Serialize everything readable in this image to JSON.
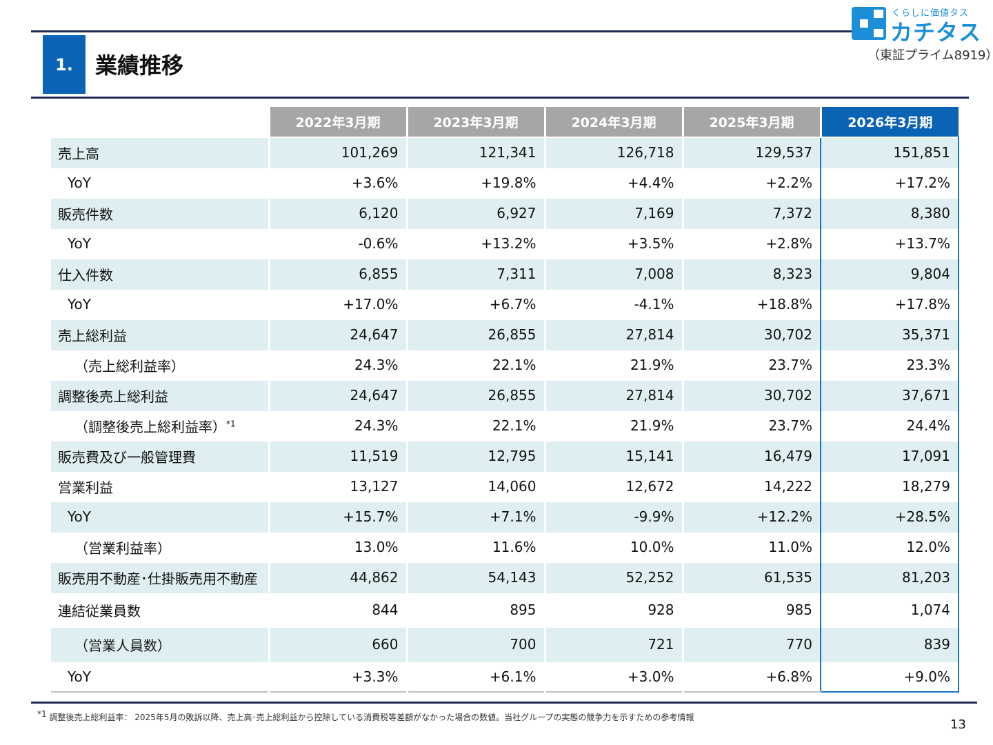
{
  "header": {
    "section_number": "1.",
    "title": "業績推移"
  },
  "logo": {
    "tagline": "くらしに価値タス",
    "name": "カチタス",
    "exchange": "（東証プライム8919）"
  },
  "table": {
    "columns": [
      "2022年3月期",
      "2023年3月期",
      "2024年3月期",
      "2025年3月期",
      "2026年3月期"
    ],
    "rows": [
      {
        "label": "売上高",
        "values": [
          "101,269",
          "121,341",
          "126,718",
          "129,537",
          "151,851"
        ]
      },
      {
        "label": "YoY",
        "values": [
          "+3.6%",
          "+19.8%",
          "+4.4%",
          "+2.2%",
          "+17.2%"
        ]
      },
      {
        "label": "販売件数",
        "values": [
          "6,120",
          "6,927",
          "7,169",
          "7,372",
          "8,380"
        ]
      },
      {
        "label": "YoY",
        "values": [
          "-0.6%",
          "+13.2%",
          "+3.5%",
          "+2.8%",
          "+13.7%"
        ]
      },
      {
        "label": "仕入件数",
        "values": [
          "6,855",
          "7,311",
          "7,008",
          "8,323",
          "9,804"
        ]
      },
      {
        "label": "YoY",
        "values": [
          "+17.0%",
          "+6.7%",
          "-4.1%",
          "+18.8%",
          "+17.8%"
        ]
      },
      {
        "label": "売上総利益",
        "values": [
          "24,647",
          "26,855",
          "27,814",
          "30,702",
          "35,371"
        ]
      },
      {
        "label": "（売上総利益率）",
        "values": [
          "24.3%",
          "22.1%",
          "21.9%",
          "23.7%",
          "23.3%"
        ]
      },
      {
        "label": "調整後売上総利益",
        "values": [
          "24,647",
          "26,855",
          "27,814",
          "30,702",
          "37,671"
        ]
      },
      {
        "label": "（調整後売上総利益率）",
        "sup": "*1",
        "values": [
          "24.3%",
          "22.1%",
          "21.9%",
          "23.7%",
          "24.4%"
        ]
      },
      {
        "label": "販売費及び一般管理費",
        "values": [
          "11,519",
          "12,795",
          "15,141",
          "16,479",
          "17,091"
        ]
      },
      {
        "label": "営業利益",
        "values": [
          "13,127",
          "14,060",
          "12,672",
          "14,222",
          "18,279"
        ]
      },
      {
        "label": "YoY",
        "values": [
          "+15.7%",
          "+7.1%",
          "-9.9%",
          "+12.2%",
          "+28.5%"
        ]
      },
      {
        "label": "（営業利益率）",
        "values": [
          "13.0%",
          "11.6%",
          "10.0%",
          "11.0%",
          "12.0%"
        ]
      },
      {
        "label": "販売用不動産･仕掛販売用不動産",
        "values": [
          "44,862",
          "54,143",
          "52,252",
          "61,535",
          "81,203"
        ]
      },
      {
        "label": "連結従業員数",
        "values": [
          "844",
          "895",
          "928",
          "985",
          "1,074"
        ]
      },
      {
        "label": "（営業人員数）",
        "values": [
          "660",
          "700",
          "721",
          "770",
          "839"
        ]
      },
      {
        "label": "YoY",
        "values": [
          "+3.3%",
          "+6.1%",
          "+3.0%",
          "+6.8%",
          "+9.0%"
        ]
      }
    ]
  },
  "footnote": {
    "marker": "*1",
    "text": "調整後売上総利益率： 2025年5月の敗訴以降、売上高･売上総利益から控除している消費税等差額がなかった場合の数値。当社グループの実態の競争力を示すための参考情報"
  },
  "page_number": "13",
  "colors": {
    "accent": "#0b63b5",
    "header_gray": "#a6a6a6",
    "row_shade": "#dfeef0",
    "rule": "#1f2a52"
  }
}
